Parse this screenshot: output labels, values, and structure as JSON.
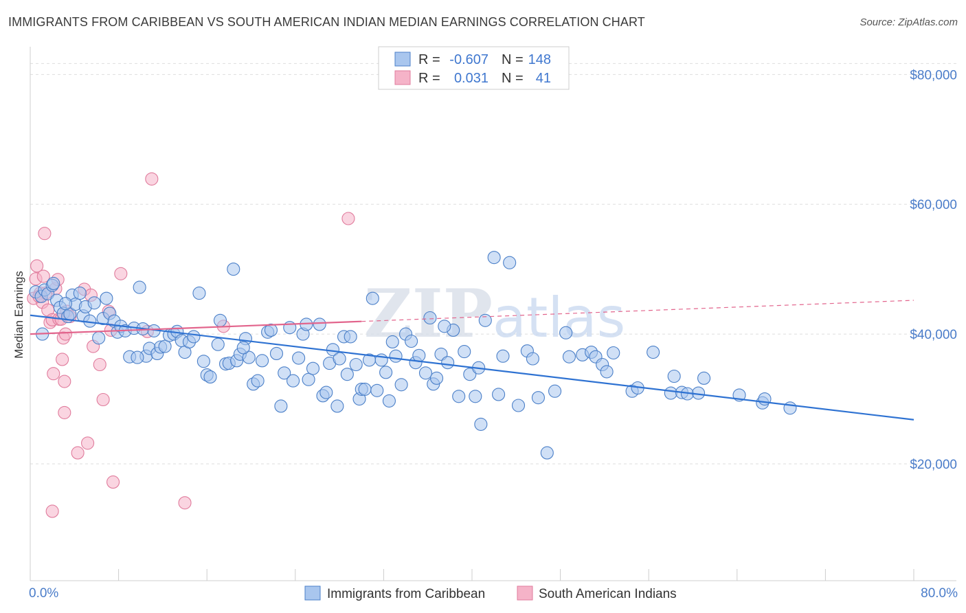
{
  "title": "IMMIGRANTS FROM CARIBBEAN VS SOUTH AMERICAN INDIAN MEDIAN EARNINGS CORRELATION CHART",
  "source": "Source: ZipAtlas.com",
  "watermark": "ZIPatlas",
  "colors": {
    "blue_fill": "#a9c6ee",
    "blue_stroke": "#4a7fc8",
    "blue_line": "#2e72d2",
    "pink_fill": "#f5b3c8",
    "pink_stroke": "#e07b9c",
    "pink_line": "#e2648c",
    "tick_text": "#4a7cc9",
    "grid": "#dddddd"
  },
  "legend": {
    "rows": [
      {
        "r_label": "R =",
        "r_value": "-0.607",
        "n_label": "N =",
        "n_value": "148"
      },
      {
        "r_label": "R =",
        "r_value": "0.031",
        "n_label": "N =",
        "n_value": "41"
      }
    ]
  },
  "chart_data": {
    "type": "scatter",
    "title": "IMMIGRANTS FROM CARIBBEAN VS SOUTH AMERICAN INDIAN MEDIAN EARNINGS CORRELATION CHART",
    "xlabel": "",
    "ylabel": "Median Earnings",
    "xlim": [
      0,
      80
    ],
    "ylim": [
      2000,
      83000
    ],
    "x_tick_labels": [
      "0.0%",
      "80.0%"
    ],
    "y_ticks": [
      20000,
      40000,
      60000,
      80000
    ],
    "y_tick_labels": [
      "$20,000",
      "$40,000",
      "$60,000",
      "$80,000"
    ],
    "grid": true,
    "legend_position": "top-center",
    "series": [
      {
        "name": "Immigrants from Caribbean",
        "r": -0.607,
        "n": 148,
        "trend": {
          "x": [
            0,
            80
          ],
          "y": [
            42900,
            26800
          ]
        },
        "points": [
          [
            0.5,
            46500
          ],
          [
            1,
            45800
          ],
          [
            1.3,
            46800
          ],
          [
            1.6,
            46200
          ],
          [
            2,
            47500
          ],
          [
            2.4,
            45200
          ],
          [
            2.7,
            44100
          ],
          [
            3,
            43200
          ],
          [
            3.4,
            42700
          ],
          [
            3.6,
            43100
          ],
          [
            3.8,
            46000
          ],
          [
            4.1,
            44600
          ],
          [
            4.5,
            46300
          ],
          [
            4.8,
            42800
          ],
          [
            5,
            44200
          ],
          [
            5.4,
            42000
          ],
          [
            5.8,
            44800
          ],
          [
            6.2,
            39400
          ],
          [
            6.6,
            42400
          ],
          [
            6.9,
            45500
          ],
          [
            7.2,
            43200
          ],
          [
            7.6,
            42000
          ],
          [
            7.9,
            40300
          ],
          [
            8.2,
            41200
          ],
          [
            8.6,
            40500
          ],
          [
            9.0,
            36500
          ],
          [
            9.4,
            40900
          ],
          [
            9.9,
            47200
          ],
          [
            10.2,
            40800
          ],
          [
            10.5,
            36600
          ],
          [
            10.8,
            37800
          ],
          [
            11.2,
            40500
          ],
          [
            11.5,
            37000
          ],
          [
            11.8,
            38000
          ],
          [
            12.2,
            38100
          ],
          [
            12.6,
            39800
          ],
          [
            13.0,
            40000
          ],
          [
            13.3,
            40400
          ],
          [
            13.7,
            39000
          ],
          [
            14.0,
            37200
          ],
          [
            14.4,
            38800
          ],
          [
            14.8,
            39600
          ],
          [
            15.3,
            46300
          ],
          [
            15.7,
            35800
          ],
          [
            16.0,
            33700
          ],
          [
            16.3,
            33400
          ],
          [
            17.0,
            38400
          ],
          [
            17.2,
            42100
          ],
          [
            17.7,
            35400
          ],
          [
            18.0,
            35500
          ],
          [
            18.4,
            50000
          ],
          [
            18.7,
            35900
          ],
          [
            19.0,
            36900
          ],
          [
            19.5,
            39300
          ],
          [
            19.8,
            36400
          ],
          [
            20.2,
            32300
          ],
          [
            20.6,
            32800
          ],
          [
            21.0,
            35900
          ],
          [
            21.5,
            40300
          ],
          [
            21.8,
            40600
          ],
          [
            22.3,
            37000
          ],
          [
            22.7,
            28900
          ],
          [
            23.0,
            34000
          ],
          [
            23.5,
            41000
          ],
          [
            23.8,
            32800
          ],
          [
            24.3,
            36300
          ],
          [
            24.7,
            40000
          ],
          [
            25.0,
            41500
          ],
          [
            25.2,
            33000
          ],
          [
            25.6,
            34700
          ],
          [
            26.2,
            41500
          ],
          [
            26.5,
            30500
          ],
          [
            26.8,
            31000
          ],
          [
            27.1,
            35500
          ],
          [
            27.4,
            37600
          ],
          [
            27.8,
            28900
          ],
          [
            28.4,
            39600
          ],
          [
            28.7,
            33800
          ],
          [
            29.0,
            39600
          ],
          [
            29.5,
            35300
          ],
          [
            29.8,
            30000
          ],
          [
            30.0,
            31500
          ],
          [
            30.3,
            31500
          ],
          [
            30.7,
            36000
          ],
          [
            31.0,
            45500
          ],
          [
            31.4,
            31300
          ],
          [
            31.8,
            36000
          ],
          [
            32.2,
            34100
          ],
          [
            32.5,
            29700
          ],
          [
            32.8,
            38800
          ],
          [
            33.1,
            36600
          ],
          [
            33.6,
            32200
          ],
          [
            34.0,
            40000
          ],
          [
            34.5,
            38900
          ],
          [
            34.9,
            35600
          ],
          [
            35.2,
            36700
          ],
          [
            35.8,
            34000
          ],
          [
            36.2,
            42500
          ],
          [
            36.5,
            32300
          ],
          [
            36.8,
            33200
          ],
          [
            37.2,
            36900
          ],
          [
            37.8,
            35600
          ],
          [
            38.3,
            40600
          ],
          [
            38.8,
            30400
          ],
          [
            39.3,
            37300
          ],
          [
            39.8,
            33800
          ],
          [
            40.3,
            30400
          ],
          [
            40.6,
            34800
          ],
          [
            40.8,
            26100
          ],
          [
            41.2,
            42100
          ],
          [
            42.0,
            51800
          ],
          [
            42.4,
            30700
          ],
          [
            42.8,
            36600
          ],
          [
            43.4,
            51000
          ],
          [
            44.2,
            29000
          ],
          [
            45.0,
            37400
          ],
          [
            46.0,
            30200
          ],
          [
            46.8,
            21700
          ],
          [
            47.5,
            31200
          ],
          [
            48.5,
            40200
          ],
          [
            48.8,
            36500
          ],
          [
            50.0,
            36800
          ],
          [
            50.8,
            37200
          ],
          [
            51.2,
            36500
          ],
          [
            51.8,
            35300
          ],
          [
            52.2,
            34200
          ],
          [
            52.8,
            37100
          ],
          [
            54.5,
            31200
          ],
          [
            55.0,
            31700
          ],
          [
            56.4,
            37200
          ],
          [
            58.0,
            30900
          ],
          [
            58.3,
            33500
          ],
          [
            59.0,
            31000
          ],
          [
            59.5,
            30800
          ],
          [
            60.5,
            30900
          ],
          [
            61.0,
            33200
          ],
          [
            64.2,
            30600
          ],
          [
            66.3,
            29400
          ],
          [
            66.5,
            30000
          ],
          [
            68.8,
            28600
          ],
          [
            1.1,
            40000
          ],
          [
            2.1,
            47800
          ],
          [
            3.2,
            44700
          ],
          [
            28.0,
            36200
          ],
          [
            19.3,
            37900
          ],
          [
            9.7,
            36400
          ],
          [
            45.5,
            36200
          ],
          [
            37.5,
            41200
          ]
        ]
      },
      {
        "name": "South American Indians",
        "r": 0.031,
        "n": 41,
        "trend": {
          "x": [
            0,
            80
          ],
          "y": [
            40000,
            45200
          ]
        },
        "points": [
          [
            0.3,
            45500
          ],
          [
            0.5,
            48500
          ],
          [
            0.6,
            50500
          ],
          [
            0.9,
            46300
          ],
          [
            1.1,
            44900
          ],
          [
            1.2,
            48900
          ],
          [
            1.4,
            46300
          ],
          [
            1.3,
            55500
          ],
          [
            1.6,
            43700
          ],
          [
            1.8,
            41800
          ],
          [
            2.0,
            42200
          ],
          [
            2.1,
            33900
          ],
          [
            2.3,
            47000
          ],
          [
            2.5,
            48400
          ],
          [
            2.6,
            42300
          ],
          [
            2.8,
            42300
          ],
          [
            2.9,
            36100
          ],
          [
            3.0,
            39400
          ],
          [
            3.1,
            32700
          ],
          [
            3.1,
            27900
          ],
          [
            3.2,
            40000
          ],
          [
            3.3,
            43500
          ],
          [
            3.6,
            42700
          ],
          [
            4.3,
            21700
          ],
          [
            4.9,
            46900
          ],
          [
            5.2,
            23200
          ],
          [
            5.7,
            38100
          ],
          [
            6.3,
            35300
          ],
          [
            6.6,
            29900
          ],
          [
            7.1,
            43500
          ],
          [
            7.3,
            40600
          ],
          [
            7.5,
            17200
          ],
          [
            8.2,
            49300
          ],
          [
            10.6,
            40400
          ],
          [
            11.0,
            63900
          ],
          [
            14.0,
            14000
          ],
          [
            17.5,
            41200
          ],
          [
            28.8,
            57800
          ],
          [
            5.5,
            46000
          ],
          [
            2.0,
            12700
          ],
          [
            0.8,
            45800
          ]
        ]
      }
    ]
  }
}
